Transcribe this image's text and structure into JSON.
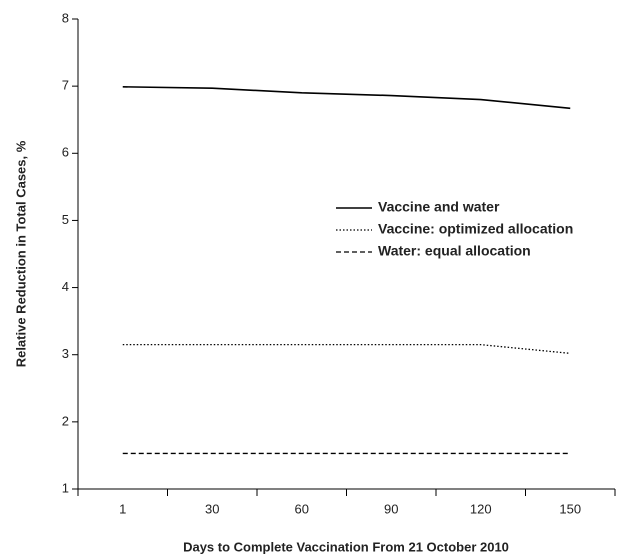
{
  "chart_data": {
    "type": "line",
    "x_label": "Days to Complete Vaccination From 21 October 2010",
    "y_label": "Relative Reduction in Total Cases, %",
    "categories": [
      "1",
      "30",
      "60",
      "90",
      "120",
      "150"
    ],
    "series": [
      {
        "name": "Vaccine and water",
        "color": "#000000",
        "line_style": "solid",
        "values": [
          6.99,
          6.97,
          6.9,
          6.86,
          6.8,
          6.67
        ]
      },
      {
        "name": "Vaccine: optimized allocation",
        "color": "#000000",
        "line_style": "dotted",
        "values": [
          3.15,
          3.15,
          3.15,
          3.15,
          3.15,
          3.02
        ]
      },
      {
        "name": "Water: equal allocation",
        "color": "#000000",
        "line_style": "dashed",
        "values": [
          1.53,
          1.53,
          1.53,
          1.53,
          1.53,
          1.53
        ]
      }
    ],
    "ylim": [
      1,
      8
    ],
    "yticks": [
      1,
      2,
      3,
      4,
      5,
      6,
      7,
      8
    ],
    "grid": false
  }
}
